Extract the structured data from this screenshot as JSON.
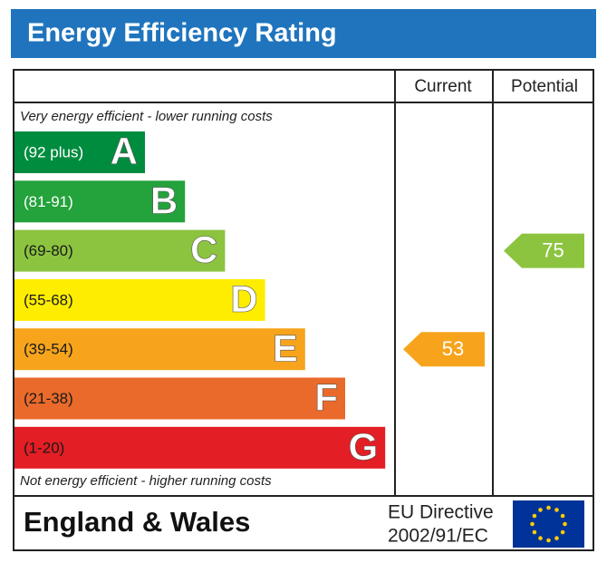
{
  "header": {
    "title": "Energy Efficiency Rating"
  },
  "columns": {
    "current": "Current",
    "potential": "Potential"
  },
  "top_note": "Very energy efficient - lower running costs",
  "bottom_note": "Not energy efficient - higher running costs",
  "bands": [
    {
      "range": "(92 plus)",
      "letter": "A",
      "color": "#008c3f",
      "text_color": "#ffffff"
    },
    {
      "range": "(81-91)",
      "letter": "B",
      "color": "#24a23b",
      "text_color": "#ffffff"
    },
    {
      "range": "(69-80)",
      "letter": "C",
      "color": "#8cc43f",
      "text_color": "#1a1a1a"
    },
    {
      "range": "(55-68)",
      "letter": "D",
      "color": "#ffed00",
      "text_color": "#1a1a1a"
    },
    {
      "range": "(39-54)",
      "letter": "E",
      "color": "#f7a41c",
      "text_color": "#1a1a1a"
    },
    {
      "range": "(21-38)",
      "letter": "F",
      "color": "#e96a2a",
      "text_color": "#1a1a1a"
    },
    {
      "range": "(1-20)",
      "letter": "G",
      "color": "#e31e24",
      "text_color": "#1a1a1a"
    }
  ],
  "current": 53,
  "potential": 75,
  "footer": {
    "region": "England & Wales",
    "directive_line1": "EU Directive",
    "directive_line2": "2002/91/EC"
  }
}
